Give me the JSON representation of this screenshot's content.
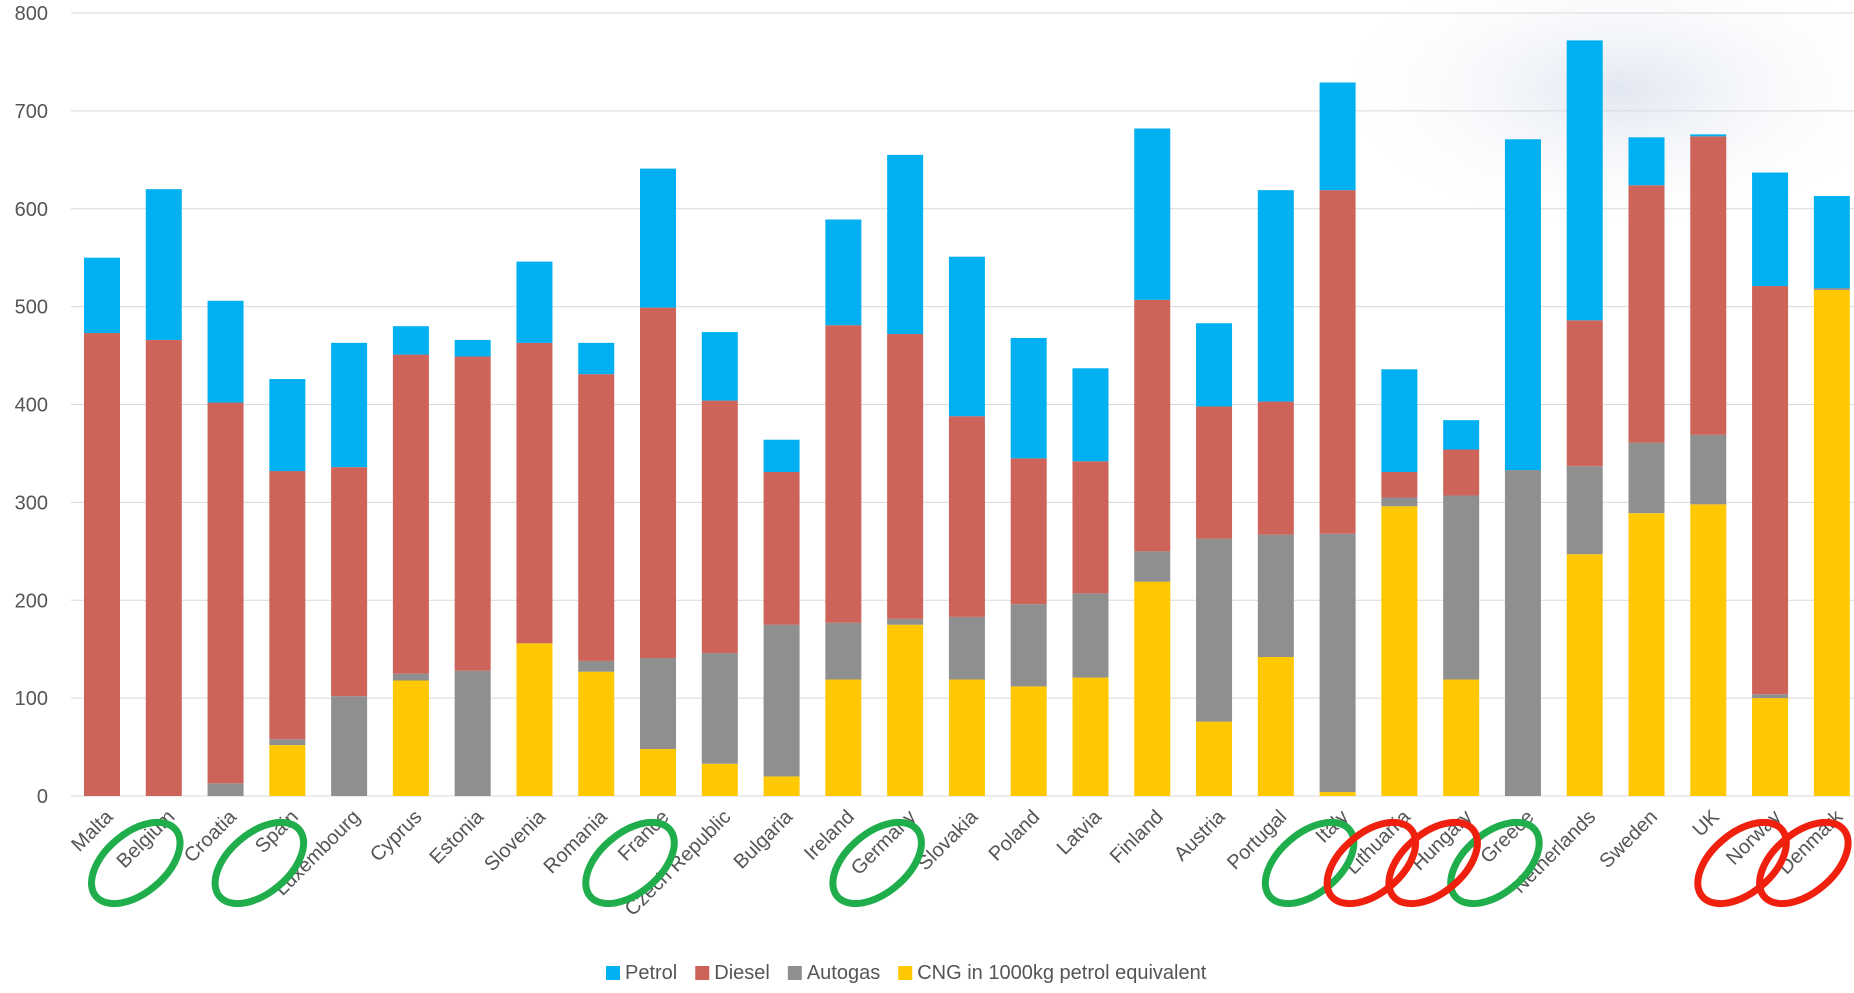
{
  "chart_data": {
    "type": "stacked-bar",
    "categories": [
      "Malta",
      "Belgium",
      "Croatia",
      "Spain",
      "Luxembourg",
      "Cyprus",
      "Estonia",
      "Slovenia",
      "Romania",
      "France",
      "Czech Republic",
      "Bulgaria",
      "Ireland",
      "Germany",
      "Slovakia",
      "Poland",
      "Latvia",
      "Finland",
      "Austria",
      "Portugal",
      "Italy",
      "Lithuania",
      "Hungary",
      "Greece",
      "Netherlands",
      "Sweden",
      "UK",
      "Norway",
      "Denmark"
    ],
    "series": [
      {
        "name": "Petrol",
        "color": "#00b0f0",
        "values": [
          77,
          154,
          104,
          94,
          127,
          29,
          17,
          83,
          32,
          142,
          70,
          33,
          108,
          183,
          163,
          123,
          95,
          175,
          85,
          216,
          110,
          105,
          30,
          338,
          286,
          49,
          2,
          116,
          94
        ]
      },
      {
        "name": "Diesel",
        "color": "#cd6359",
        "values": [
          473,
          466,
          389,
          274,
          234,
          326,
          321,
          307,
          293,
          358,
          258,
          156,
          304,
          291,
          205,
          149,
          135,
          257,
          135,
          136,
          351,
          26,
          47,
          0,
          149,
          263,
          305,
          417,
          0
        ]
      },
      {
        "name": "Autogas",
        "color": "#8f8f8f",
        "values": [
          0,
          0,
          13,
          6,
          102,
          7,
          128,
          0,
          11,
          93,
          113,
          155,
          58,
          6,
          64,
          84,
          86,
          31,
          187,
          125,
          264,
          9,
          188,
          333,
          90,
          72,
          71,
          4,
          2
        ]
      },
      {
        "name": "CNG in 1000kg petrol equivalent",
        "color": "#ffc800",
        "values": [
          0,
          0,
          0,
          52,
          0,
          118,
          0,
          156,
          127,
          48,
          33,
          20,
          119,
          175,
          119,
          112,
          121,
          219,
          76,
          142,
          4,
          296,
          119,
          0,
          247,
          289,
          298,
          100,
          517
        ]
      }
    ],
    "ylim": [
      0,
      800
    ],
    "yticks": [
      0,
      100,
      200,
      300,
      400,
      500,
      600,
      700,
      800
    ],
    "grid": true,
    "legend": "bottom"
  }
}
